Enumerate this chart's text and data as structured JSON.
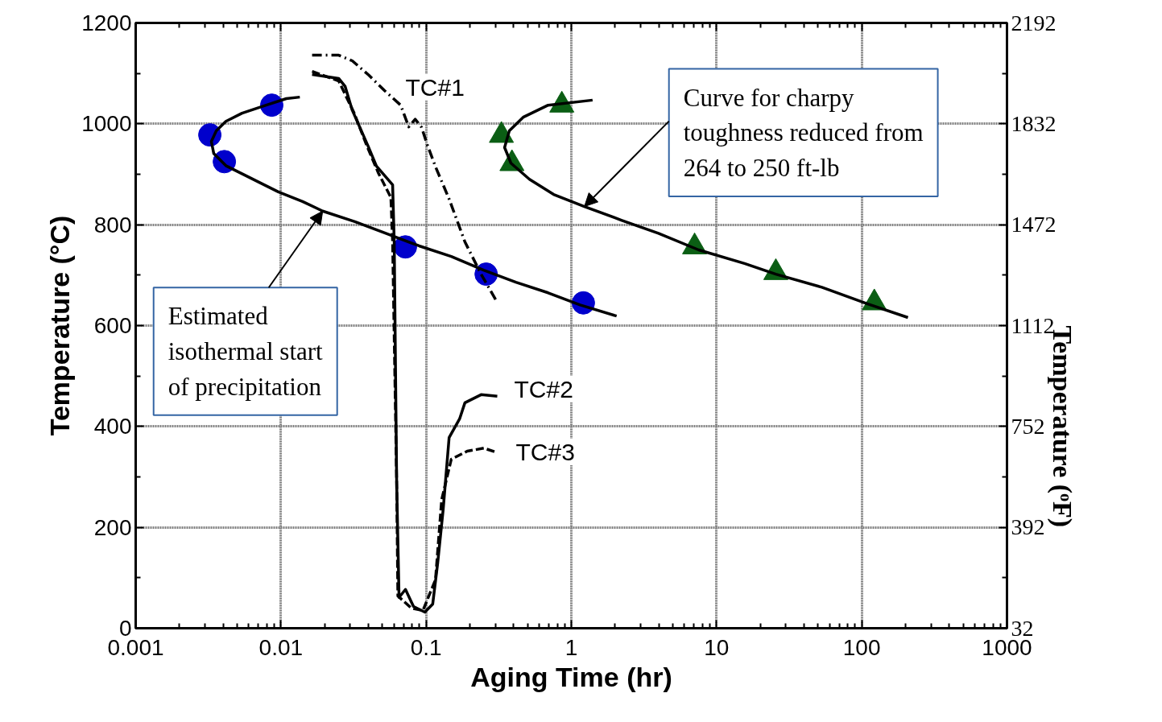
{
  "chart_data": {
    "type": "line",
    "xlabel": "Aging Time (hr)",
    "ylabel": "Temperature (°C)",
    "y2label": "Temperature (ᵒF)",
    "log": "x",
    "xlim": [
      0.001,
      1000
    ],
    "xticks": [
      0.001,
      0.01,
      0.1,
      1,
      10,
      100,
      1000
    ],
    "ylim": [
      0,
      1200
    ],
    "yticks": [
      0,
      200,
      400,
      600,
      800,
      1000,
      1200
    ],
    "y2lim": [
      32,
      2192
    ],
    "y2ticks": [
      32,
      392,
      752,
      1112,
      1472,
      1832,
      2192
    ],
    "grid": true,
    "series": [
      {
        "color": "#000000",
        "line_style": "solid",
        "marker": "none",
        "x": [
          0.0135,
          0.0109,
          0.00792,
          0.0054,
          0.00418,
          0.00359,
          0.00332,
          0.00345,
          0.00418,
          0.0054,
          0.00697,
          0.0096,
          0.0141,
          0.0194,
          0.0323,
          0.0537,
          0.0895,
          0.149,
          0.249,
          0.415,
          0.692,
          1.15,
          2.05
        ],
        "values": [
          1053,
          1050,
          1037,
          1021,
          1005,
          986,
          965,
          941,
          917,
          901,
          885,
          865,
          846,
          827,
          806,
          782,
          758,
          737,
          710,
          686,
          665,
          641,
          619
        ]
      },
      {
        "color": "#000000",
        "line_style": "solid",
        "marker": "none",
        "x": [
          1.4,
          0.692,
          0.466,
          0.374,
          0.347,
          0.384,
          0.515,
          0.755,
          1.23,
          2.21,
          3.98,
          7.54,
          15.6,
          25.6,
          53.1,
          110,
          208
        ],
        "values": [
          1047,
          1037,
          1013,
          986,
          953,
          922,
          890,
          860,
          836,
          809,
          783,
          750,
          723,
          702,
          676,
          643,
          616
        ]
      },
      {
        "color": "#000000",
        "line_style": "dashdot",
        "marker": "none",
        "x": [
          0.0164,
          0.025,
          0.031,
          0.0401,
          0.0517,
          0.0668,
          0.0759,
          0.0841,
          0.0931,
          0.102,
          0.116,
          0.144,
          0.185,
          0.239,
          0.309
        ],
        "values": [
          1136,
          1136,
          1125,
          1097,
          1066,
          1037,
          994,
          1009,
          993,
          958,
          915,
          851,
          766,
          702,
          646
        ]
      },
      {
        "color": "#000000",
        "line_style": "solid",
        "marker": "none",
        "x": [
          0.0164,
          0.025,
          0.0277,
          0.031,
          0.0401,
          0.0455,
          0.0588,
          0.0603,
          0.0627,
          0.0651,
          0.0721,
          0.0819,
          0.098,
          0.111,
          0.12,
          0.131,
          0.144,
          0.17,
          0.185,
          0.239,
          0.309
        ],
        "values": [
          1098,
          1090,
          1074,
          1027,
          954,
          916,
          879,
          766,
          287,
          61,
          77,
          43,
          32,
          48,
          128,
          235,
          378,
          415,
          447,
          463,
          460
        ]
      },
      {
        "color": "#000000",
        "line_style": "dashed",
        "marker": "none",
        "x": [
          0.0164,
          0.025,
          0.032,
          0.039,
          0.047,
          0.0572,
          0.0588,
          0.0627,
          0.0639,
          0.079,
          0.095,
          0.116,
          0.128,
          0.149,
          0.192,
          0.25,
          0.309
        ],
        "values": [
          1104,
          1085,
          1021,
          957,
          902,
          854,
          766,
          287,
          64,
          40,
          35,
          96,
          255,
          335,
          351,
          357,
          348
        ]
      },
      {
        "type": "scatter",
        "color": "#0000cc",
        "marker": "circle",
        "x": [
          0.00865,
          0.00324,
          0.00408,
          0.072,
          0.259,
          1.21
        ],
        "values": [
          1037,
          978,
          925,
          756,
          702,
          645
        ]
      },
      {
        "type": "scatter",
        "color": "#0b5e14",
        "marker": "triangle",
        "x": [
          0.86,
          0.33,
          0.39,
          7.06,
          25.6,
          122
        ],
        "values": [
          1037,
          977,
          921,
          756,
          705,
          645
        ]
      }
    ],
    "annotations": [
      "TC#1",
      "TC#2",
      "TC#3",
      {
        "text": "Estimated\nisothermal start\nof precipitation",
        "x": 0.0194,
        "y": 827
      },
      {
        "text": "Curve for charpy\ntoughness reduced from\n264 to 250 ft-lb",
        "x": 1.23,
        "y": 836
      }
    ]
  }
}
